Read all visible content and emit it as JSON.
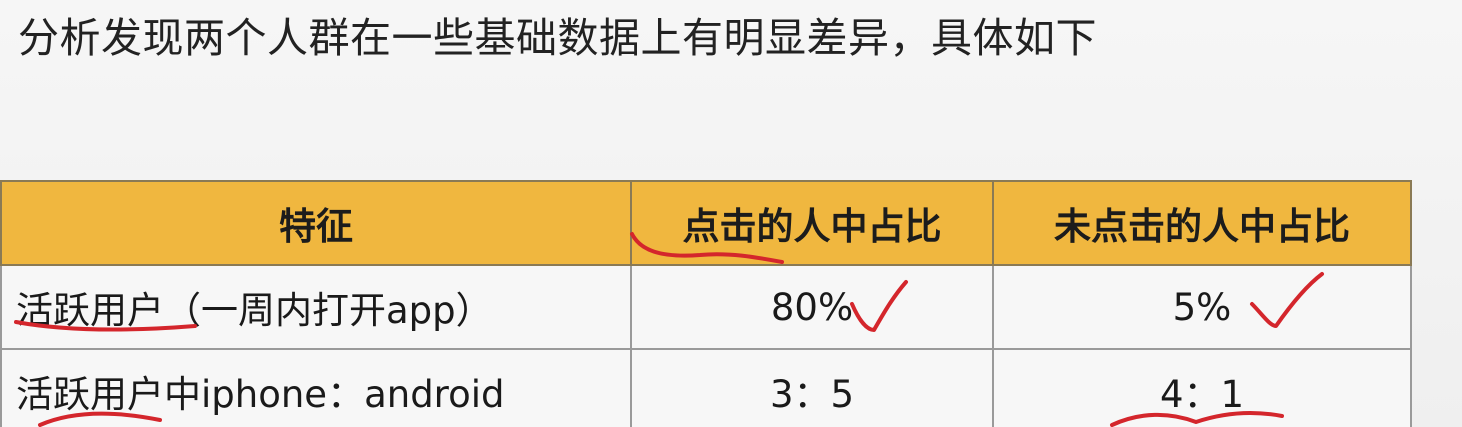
{
  "heading": "分析发现两个人群在一些基础数据上有明显差异，具体如下",
  "table": {
    "headers": [
      "特征",
      "点击的人中占比",
      "未点击的人中占比"
    ],
    "rows": [
      [
        "活跃用户（一周内打开app）",
        "80%",
        "5%"
      ],
      [
        "活跃用户中iphone：android",
        "3：5",
        "4：1"
      ]
    ]
  },
  "annotations": {
    "color": "#d4262c",
    "marks": [
      "check-mark",
      "check-mark",
      "underline",
      "underline",
      "underline"
    ]
  }
}
